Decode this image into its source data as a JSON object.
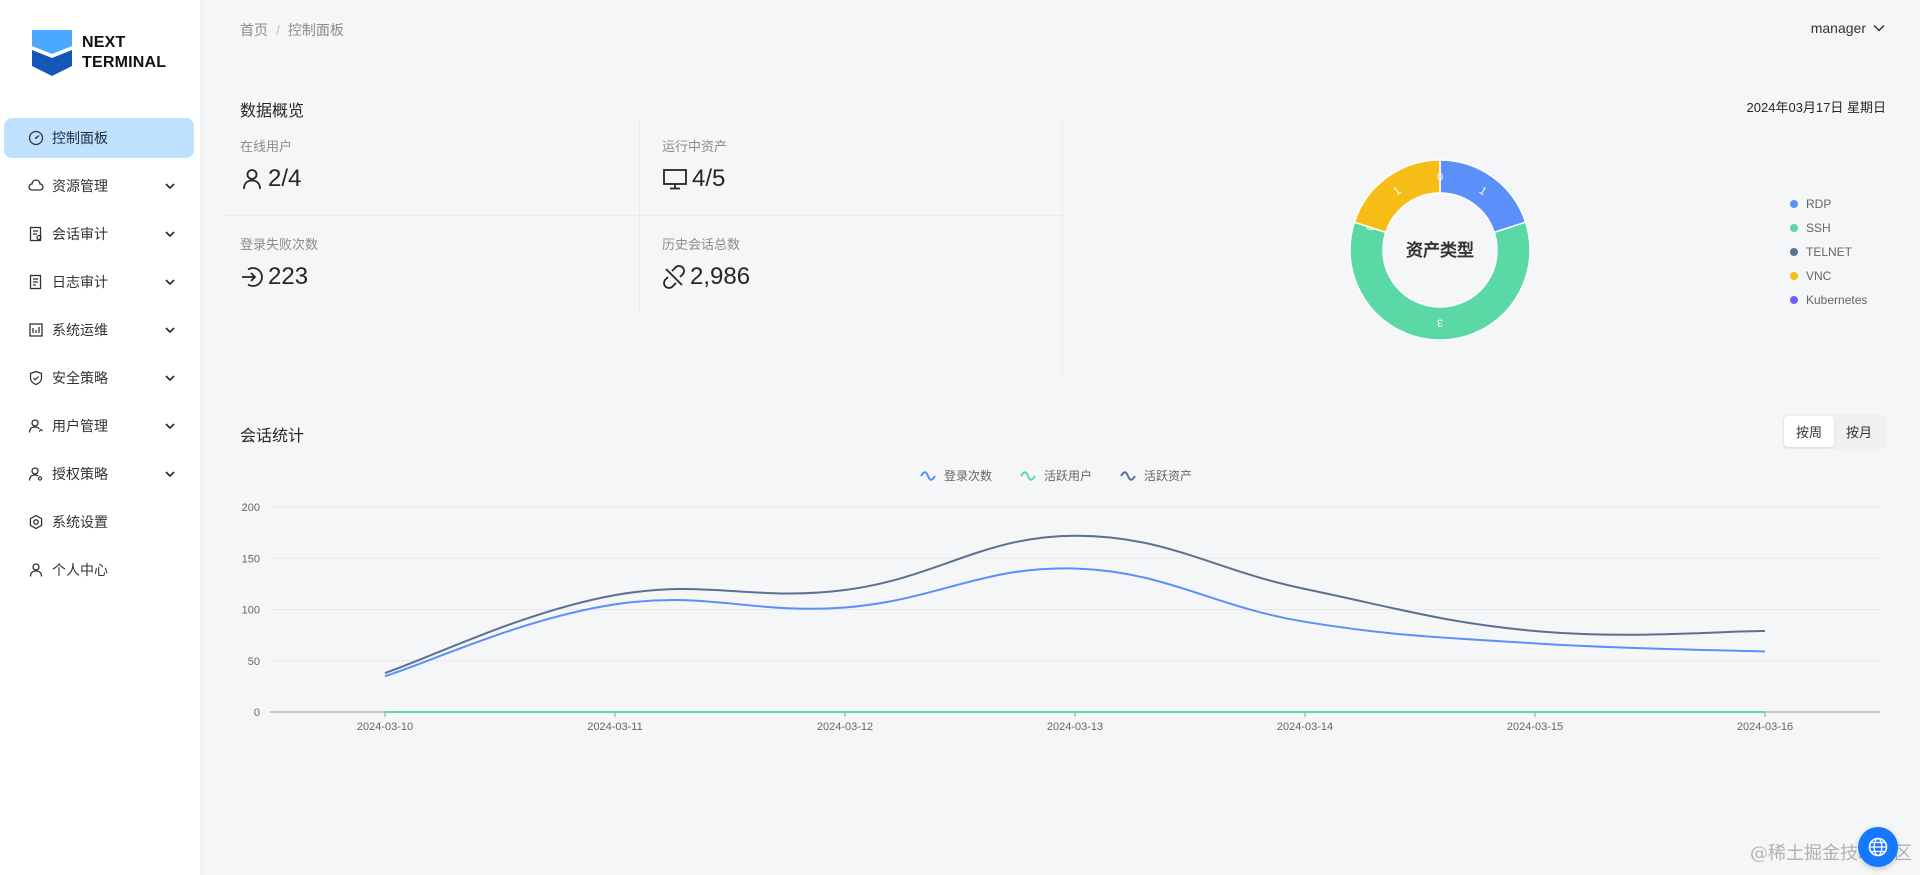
{
  "app": {
    "logo_line1": "NEXT",
    "logo_line2": "TERMINAL"
  },
  "sidebar": {
    "items": [
      {
        "label": "控制面板",
        "icon": "dashboard-icon",
        "active": true,
        "expandable": false
      },
      {
        "label": "资源管理",
        "icon": "cloud-icon",
        "active": false,
        "expandable": true
      },
      {
        "label": "会话审计",
        "icon": "audit-icon",
        "active": false,
        "expandable": true
      },
      {
        "label": "日志审计",
        "icon": "log-icon",
        "active": false,
        "expandable": true
      },
      {
        "label": "系统运维",
        "icon": "ops-icon",
        "active": false,
        "expandable": true
      },
      {
        "label": "安全策略",
        "icon": "shield-icon",
        "active": false,
        "expandable": true
      },
      {
        "label": "用户管理",
        "icon": "user-manage-icon",
        "active": false,
        "expandable": true
      },
      {
        "label": "授权策略",
        "icon": "auth-icon",
        "active": false,
        "expandable": true
      },
      {
        "label": "系统设置",
        "icon": "gear-icon",
        "active": false,
        "expandable": false
      },
      {
        "label": "个人中心",
        "icon": "user-icon",
        "active": false,
        "expandable": false
      }
    ]
  },
  "header": {
    "breadcrumb": [
      "首页",
      "控制面板"
    ],
    "breadcrumb_sep": "/",
    "user": "manager"
  },
  "overview": {
    "title": "数据概览",
    "date": "2024年03月17日 星期日",
    "stats": [
      {
        "label": "在线用户",
        "value": "2/4",
        "icon": "user-icon"
      },
      {
        "label": "运行中资产",
        "value": "4/5",
        "icon": "monitor-icon"
      },
      {
        "label": "登录失败次数",
        "value": "223",
        "icon": "login-icon"
      },
      {
        "label": "历史会话总数",
        "value": "2,986",
        "icon": "link-broken-icon"
      }
    ]
  },
  "asset_chart": {
    "chart_data": {
      "type": "pie",
      "title": "资产类型",
      "categories": [
        "RDP",
        "SSH",
        "TELNET",
        "VNC",
        "Kubernetes"
      ],
      "values": [
        1,
        3,
        0,
        1,
        0
      ],
      "colors": [
        "#5b8ff9",
        "#5ad8a6",
        "#5d7092",
        "#f6bd16",
        "#6f5ef9"
      ],
      "legend": "right"
    }
  },
  "session": {
    "title": "会话统计",
    "toggle": [
      "按周",
      "按月"
    ],
    "toggle_selected": "按周",
    "chart_data": {
      "type": "line",
      "x": [
        "2024-03-10",
        "2024-03-11",
        "2024-03-12",
        "2024-03-13",
        "2024-03-14",
        "2024-03-15",
        "2024-03-16"
      ],
      "series": [
        {
          "name": "登录次数",
          "values": [
            35,
            105,
            102,
            140,
            88,
            67,
            59
          ],
          "color": "#5b8ff9"
        },
        {
          "name": "活跃用户",
          "values": [
            0,
            0,
            0,
            0,
            0,
            0,
            0
          ],
          "color": "#5ad8a6"
        },
        {
          "name": "活跃资产",
          "values": [
            38,
            114,
            119,
            172,
            120,
            79,
            79
          ],
          "color": "#5d7092"
        }
      ],
      "ylim": [
        0,
        200
      ],
      "yticks": [
        "0",
        "50",
        "100",
        "150",
        "200"
      ],
      "grid": true,
      "legend": "top"
    }
  },
  "watermark": "@稀土掘金技术社区"
}
